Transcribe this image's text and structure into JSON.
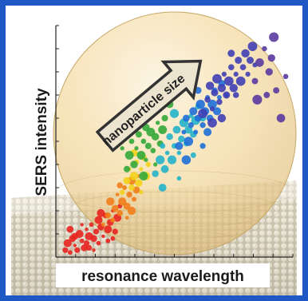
{
  "colors": {
    "frame": "#1f57c5",
    "sphere_fill": "#f3d79a",
    "arrow_fill": "#ece4cf",
    "arrow_stroke": "#333333",
    "surface_light": "#e9e3d2",
    "surface_dark": "#9a9484"
  },
  "chart_data": {
    "type": "scatter",
    "xlabel": "resonance wavelength",
    "ylabel": "SERS intensity",
    "annotation": "nanoparticle size",
    "xlim": [
      0,
      100
    ],
    "ylim": [
      0,
      100
    ],
    "ticks_labeled": false,
    "grid": false,
    "legend": "none",
    "series": [
      {
        "color": "#e8231f",
        "points": [
          [
            4,
            3
          ],
          [
            5,
            6
          ],
          [
            6,
            2
          ],
          [
            7,
            8
          ],
          [
            8,
            5
          ],
          [
            9,
            3
          ],
          [
            10,
            10
          ],
          [
            11,
            7
          ],
          [
            12,
            4
          ],
          [
            13,
            12
          ],
          [
            13,
            6
          ],
          [
            14,
            9
          ],
          [
            15,
            14
          ],
          [
            16,
            8
          ],
          [
            16,
            3
          ],
          [
            17,
            11
          ],
          [
            18,
            16
          ],
          [
            18,
            6
          ],
          [
            19,
            13
          ],
          [
            20,
            9
          ],
          [
            21,
            18
          ],
          [
            22,
            12
          ],
          [
            22,
            7
          ],
          [
            23,
            15
          ],
          [
            24,
            20
          ],
          [
            25,
            11
          ],
          [
            26,
            17
          ],
          [
            27,
            22
          ],
          [
            8,
            9
          ],
          [
            11,
            14
          ],
          [
            14,
            4
          ],
          [
            19,
            19
          ],
          [
            24,
            8
          ],
          [
            6,
            12
          ]
        ]
      },
      {
        "color": "#f07d1a",
        "points": [
          [
            20,
            14
          ],
          [
            22,
            18
          ],
          [
            23,
            24
          ],
          [
            24,
            16
          ],
          [
            25,
            21
          ],
          [
            26,
            27
          ],
          [
            27,
            19
          ],
          [
            28,
            24
          ],
          [
            29,
            30
          ],
          [
            30,
            22
          ],
          [
            30,
            17
          ],
          [
            31,
            27
          ],
          [
            32,
            33
          ],
          [
            33,
            25
          ],
          [
            34,
            29
          ],
          [
            35,
            35
          ],
          [
            27,
            31
          ],
          [
            32,
            20
          ]
        ]
      },
      {
        "color": "#f2d21c",
        "points": [
          [
            28,
            28
          ],
          [
            30,
            33
          ],
          [
            31,
            38
          ],
          [
            32,
            30
          ],
          [
            33,
            35
          ],
          [
            34,
            41
          ],
          [
            35,
            32
          ],
          [
            36,
            38
          ],
          [
            37,
            43
          ],
          [
            38,
            35
          ],
          [
            39,
            40
          ],
          [
            33,
            45
          ],
          [
            36,
            28
          ]
        ]
      },
      {
        "color": "#33a83a",
        "points": [
          [
            30,
            38
          ],
          [
            31,
            44
          ],
          [
            32,
            50
          ],
          [
            33,
            40
          ],
          [
            34,
            47
          ],
          [
            35,
            53
          ],
          [
            36,
            44
          ],
          [
            37,
            50
          ],
          [
            38,
            56
          ],
          [
            38,
            42
          ],
          [
            39,
            48
          ],
          [
            40,
            54
          ],
          [
            41,
            46
          ],
          [
            42,
            52
          ],
          [
            43,
            58
          ],
          [
            44,
            49
          ],
          [
            45,
            55
          ],
          [
            34,
            58
          ],
          [
            40,
            62
          ],
          [
            28,
            47
          ],
          [
            46,
            60
          ],
          [
            37,
            35
          ],
          [
            26,
            52
          ],
          [
            48,
            66
          ],
          [
            42,
            40
          ]
        ]
      },
      {
        "color": "#22b3c9",
        "points": [
          [
            42,
            36
          ],
          [
            44,
            42
          ],
          [
            45,
            48
          ],
          [
            46,
            38
          ],
          [
            47,
            45
          ],
          [
            48,
            52
          ],
          [
            49,
            42
          ],
          [
            50,
            48
          ],
          [
            51,
            55
          ],
          [
            52,
            45
          ],
          [
            53,
            51
          ],
          [
            54,
            58
          ],
          [
            55,
            49
          ],
          [
            56,
            55
          ],
          [
            57,
            61
          ],
          [
            58,
            53
          ],
          [
            59,
            59
          ],
          [
            60,
            65
          ],
          [
            45,
            30
          ],
          [
            52,
            34
          ],
          [
            62,
            60
          ],
          [
            50,
            62
          ],
          [
            58,
            44
          ]
        ]
      },
      {
        "color": "#1e6fd8",
        "points": [
          [
            52,
            48
          ],
          [
            54,
            54
          ],
          [
            55,
            60
          ],
          [
            56,
            50
          ],
          [
            57,
            57
          ],
          [
            58,
            63
          ],
          [
            59,
            54
          ],
          [
            60,
            60
          ],
          [
            61,
            66
          ],
          [
            62,
            57
          ],
          [
            63,
            63
          ],
          [
            64,
            69
          ],
          [
            65,
            60
          ],
          [
            66,
            66
          ],
          [
            67,
            72
          ],
          [
            68,
            63
          ],
          [
            69,
            69
          ],
          [
            70,
            75
          ],
          [
            55,
            42
          ],
          [
            62,
            48
          ],
          [
            64,
            54
          ],
          [
            72,
            70
          ],
          [
            60,
            72
          ]
        ]
      },
      {
        "color": "#3f3fb5",
        "points": [
          [
            62,
            62
          ],
          [
            64,
            68
          ],
          [
            65,
            74
          ],
          [
            66,
            64
          ],
          [
            67,
            71
          ],
          [
            68,
            77
          ],
          [
            69,
            67
          ],
          [
            70,
            73
          ],
          [
            71,
            79
          ],
          [
            72,
            70
          ],
          [
            73,
            76
          ],
          [
            74,
            82
          ],
          [
            75,
            73
          ],
          [
            76,
            79
          ],
          [
            77,
            85
          ],
          [
            78,
            76
          ],
          [
            79,
            82
          ],
          [
            80,
            88
          ],
          [
            81,
            79
          ],
          [
            82,
            85
          ],
          [
            83,
            91
          ],
          [
            76,
            70
          ],
          [
            70,
            60
          ],
          [
            84,
            83
          ],
          [
            74,
            88
          ],
          [
            66,
            58
          ]
        ]
      },
      {
        "color": "#5a3aa0",
        "points": [
          [
            84,
            76
          ],
          [
            86,
            84
          ],
          [
            88,
            90
          ],
          [
            90,
            80
          ],
          [
            92,
            95
          ],
          [
            89,
            70
          ],
          [
            95,
            60
          ],
          [
            97,
            78
          ],
          [
            91,
            86
          ],
          [
            85,
            68
          ],
          [
            93,
            72
          ]
        ]
      }
    ]
  }
}
